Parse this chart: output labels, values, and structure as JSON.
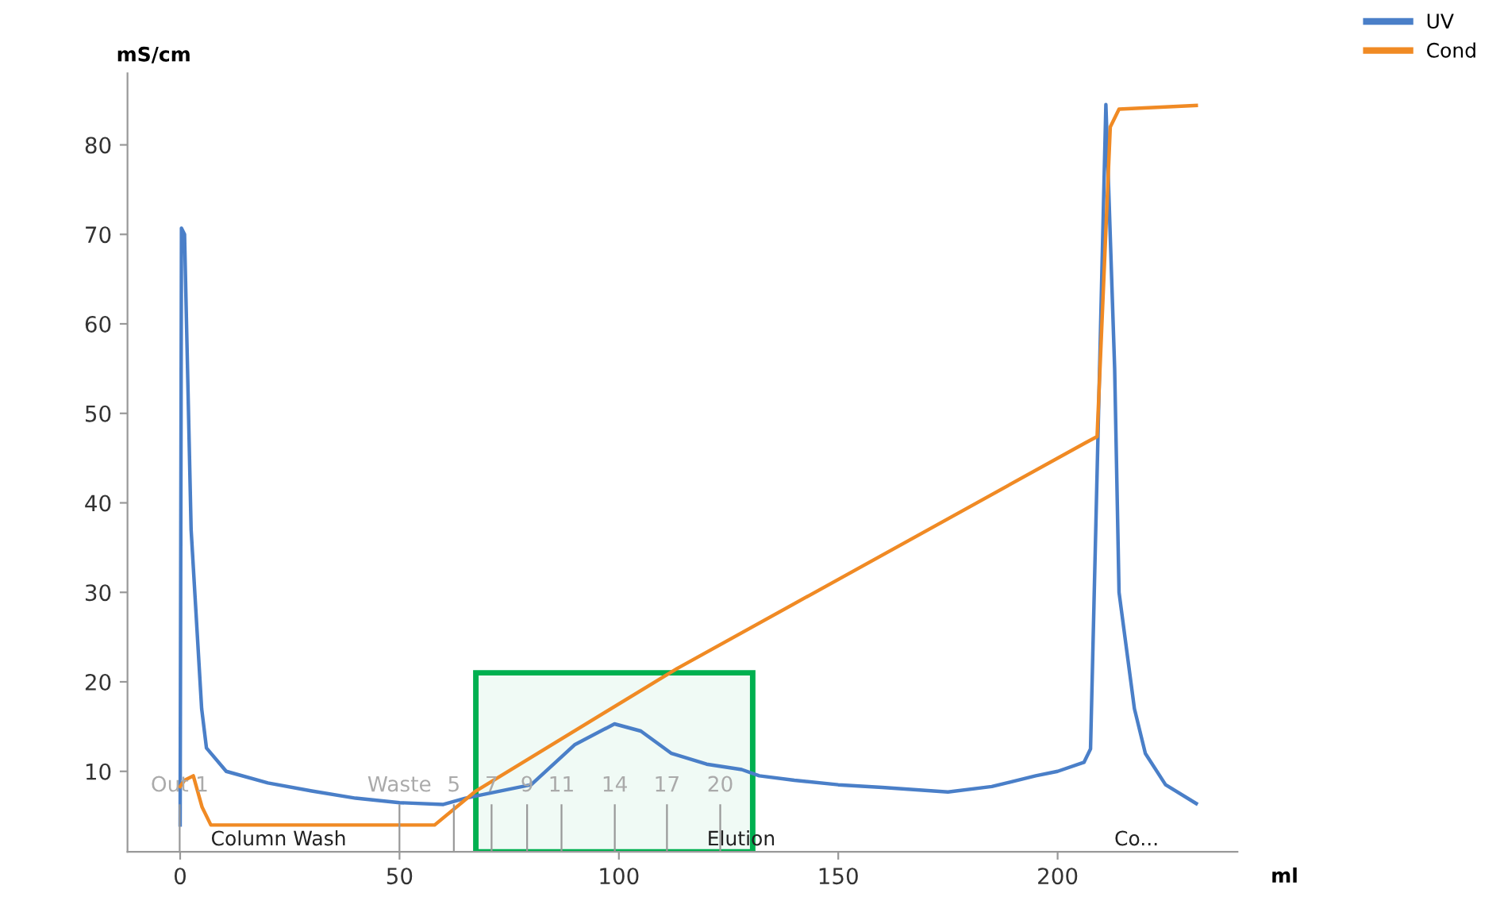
{
  "chart_data": {
    "type": "line",
    "xlabel": "ml",
    "ylabel": "mS/cm",
    "xlim": [
      -12,
      241
    ],
    "ylim": [
      1,
      88
    ],
    "xticks": [
      0,
      50,
      100,
      150,
      200
    ],
    "yticks": [
      10,
      20,
      30,
      40,
      50,
      60,
      70,
      80
    ],
    "grid": false,
    "legend": "top right",
    "line_style": "solid",
    "marker": "none",
    "series": [
      {
        "name": "UV",
        "color": "#4a7fc8",
        "x": [
          0,
          0.3,
          1,
          2.5,
          4.9,
          6,
          10.5,
          20,
          30,
          40,
          50,
          60,
          65,
          70,
          80,
          90,
          99,
          105,
          112,
          120,
          128,
          132,
          140,
          150,
          160,
          175,
          185,
          195,
          200,
          206,
          207.5,
          211,
          213,
          214,
          217.5,
          220,
          224.6,
          231.6
        ],
        "values": [
          4,
          70.7,
          70,
          37,
          17,
          12.6,
          10,
          8.7,
          7.8,
          7,
          6.5,
          6.3,
          7,
          7.5,
          8.5,
          13,
          15.3,
          14.5,
          12,
          10.8,
          10.2,
          9.5,
          9,
          8.5,
          8.2,
          7.7,
          8.3,
          9.5,
          10,
          11,
          12.5,
          84.5,
          55,
          30,
          17,
          12,
          8.5,
          6.4
        ]
      },
      {
        "name": "Cond",
        "color": "#f08a24",
        "x": [
          0,
          1,
          3,
          5,
          7,
          58,
          67.4,
          113.3,
          206.3,
          209,
          212,
          214,
          231.6
        ],
        "values": [
          8.3,
          9,
          9.5,
          6,
          4,
          4,
          7.8,
          21.5,
          46.7,
          47.4,
          82,
          84,
          84.4
        ]
      }
    ],
    "bands": [
      {
        "axis": "x",
        "from": 67.4,
        "to": 130.5,
        "color": "#00b050"
      }
    ],
    "annotations": [
      "Out 1",
      "Waste",
      "5",
      "7",
      "9",
      "11",
      "14",
      "17",
      "20",
      "Column Wash",
      "Elution",
      "Co..."
    ]
  }
}
